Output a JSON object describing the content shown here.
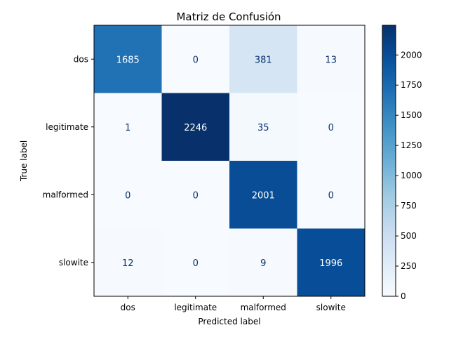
{
  "chart_data": {
    "type": "heatmap",
    "title": "Matriz de Confusión",
    "xlabel": "Predicted label",
    "ylabel": "True label",
    "x_categories": [
      "dos",
      "legitimate",
      "malformed",
      "slowite"
    ],
    "y_categories": [
      "dos",
      "legitimate",
      "malformed",
      "slowite"
    ],
    "values": [
      [
        1685,
        0,
        381,
        13
      ],
      [
        1,
        2246,
        35,
        0
      ],
      [
        0,
        0,
        2001,
        0
      ],
      [
        12,
        0,
        9,
        1996
      ]
    ],
    "colormap": "Blues",
    "colorbar": {
      "min": 0,
      "max": 2246,
      "ticks": [
        0,
        250,
        500,
        750,
        1000,
        1250,
        1500,
        1750,
        2000
      ]
    },
    "colors": {
      "low": "#f7fbff",
      "high": "#08306b",
      "text_dark": "#08306b",
      "text_light": "#ffffff"
    }
  }
}
